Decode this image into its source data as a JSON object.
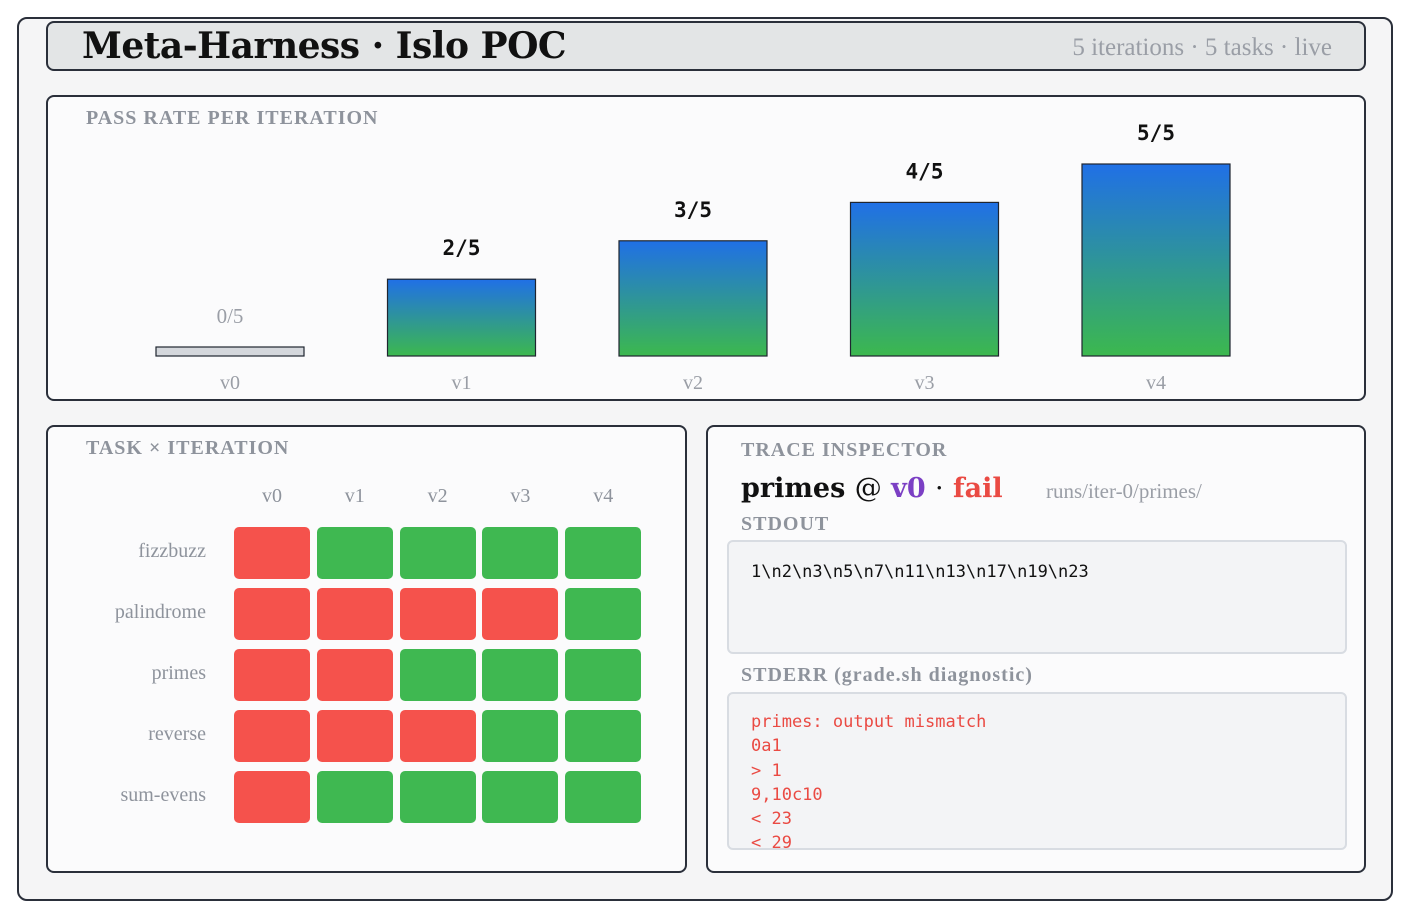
{
  "header": {
    "title": "Meta-Harness · Islo POC",
    "subtitle": "5 iterations · 5 tasks · live"
  },
  "chart_panel": {
    "title": "PASS RATE PER ITERATION"
  },
  "chart_data": {
    "type": "bar",
    "categories": [
      "v0",
      "v1",
      "v2",
      "v3",
      "v4"
    ],
    "values": [
      0,
      2,
      3,
      4,
      5
    ],
    "total": 5,
    "labels": [
      "0/5",
      "2/5",
      "3/5",
      "4/5",
      "5/5"
    ],
    "ylim": [
      0,
      5
    ],
    "colors": {
      "gradient_top": "#2070e6",
      "gradient_bottom": "#3cb84e",
      "empty": "#d4d7dc"
    }
  },
  "heatmap": {
    "title": "TASK × ITERATION",
    "columns": [
      "v0",
      "v1",
      "v2",
      "v3",
      "v4"
    ],
    "rows": [
      {
        "task": "fizzbuzz",
        "results": [
          "fail",
          "pass",
          "pass",
          "pass",
          "pass"
        ]
      },
      {
        "task": "palindrome",
        "results": [
          "fail",
          "fail",
          "fail",
          "fail",
          "pass"
        ]
      },
      {
        "task": "primes",
        "results": [
          "fail",
          "fail",
          "pass",
          "pass",
          "pass"
        ]
      },
      {
        "task": "reverse",
        "results": [
          "fail",
          "fail",
          "fail",
          "pass",
          "pass"
        ]
      },
      {
        "task": "sum-evens",
        "results": [
          "fail",
          "pass",
          "pass",
          "pass",
          "pass"
        ]
      }
    ],
    "colors": {
      "pass": "#3fb851",
      "fail": "#f5524c"
    }
  },
  "trace": {
    "title": "TRACE INSPECTOR",
    "task": "primes",
    "at": "@",
    "version": "v0",
    "sep": "·",
    "status": "fail",
    "path": "runs/iter-0/primes/",
    "stdout_label": "STDOUT",
    "stdout": "1\\n2\\n3\\n5\\n7\\n11\\n13\\n17\\n19\\n23",
    "stderr_label": "STDERR (grade.sh diagnostic)",
    "stderr_lines": [
      "primes: output mismatch",
      "0a1",
      "> 1",
      "9,10c10",
      "< 23",
      "< 29"
    ],
    "colors": {
      "version": "#7b3fc4",
      "status": "#ea4a43"
    }
  }
}
